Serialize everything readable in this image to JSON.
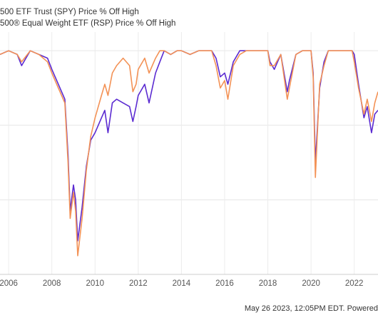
{
  "legend": [
    {
      "label": "500 ETF Trust (SPY) Price % Off High",
      "color": "#5b2bd1"
    },
    {
      "label": "500® Equal Weight ETF (RSP) Price % Off High",
      "color": "#f39256"
    }
  ],
  "footer": {
    "text": "May 26 2023, 12:05PM EDT. Powered"
  },
  "chart_data": {
    "type": "line",
    "title": "",
    "xlabel": "",
    "ylabel": "",
    "x_ticks": [
      "2006",
      "2008",
      "2010",
      "2012",
      "2014",
      "2016",
      "2018",
      "2020",
      "2022"
    ],
    "xlim": [
      2005.6,
      2023.1
    ],
    "ylim": [
      -60,
      5
    ],
    "grid": true,
    "legend_position": "top-left",
    "series": [
      {
        "name": "500 ETF Trust (SPY) Price % Off High",
        "color": "#5b2bd1",
        "x": [
          2005.6,
          2006.0,
          2006.4,
          2006.6,
          2007.0,
          2007.4,
          2007.8,
          2008.0,
          2008.3,
          2008.6,
          2008.75,
          2008.85,
          2009.0,
          2009.1,
          2009.2,
          2009.4,
          2009.6,
          2009.8,
          2010.0,
          2010.3,
          2010.45,
          2010.6,
          2010.8,
          2011.0,
          2011.3,
          2011.6,
          2011.75,
          2011.9,
          2012.0,
          2012.3,
          2012.5,
          2012.8,
          2013.0,
          2013.2,
          2013.5,
          2013.8,
          2014.0,
          2014.4,
          2014.8,
          2015.0,
          2015.4,
          2015.6,
          2015.8,
          2016.0,
          2016.15,
          2016.4,
          2016.7,
          2017.0,
          2017.5,
          2018.0,
          2018.1,
          2018.3,
          2018.6,
          2018.9,
          2019.0,
          2019.3,
          2019.6,
          2020.0,
          2020.1,
          2020.2,
          2020.4,
          2020.6,
          2020.8,
          2021.0,
          2021.5,
          2021.9,
          2022.0,
          2022.2,
          2022.45,
          2022.6,
          2022.8,
          2022.95,
          2023.1
        ],
        "y": [
          -1,
          0,
          -1,
          -4,
          0,
          -1,
          -2,
          -5,
          -9,
          -13,
          -28,
          -43,
          -36,
          -40,
          -51,
          -42,
          -31,
          -24,
          -22,
          -18,
          -16,
          -22,
          -14,
          -13,
          -14,
          -15,
          -19,
          -15,
          -12,
          -9,
          -14,
          -6,
          -3,
          0,
          -1,
          0,
          0,
          -1,
          0,
          0,
          0,
          -2,
          -7,
          -6,
          -9,
          -3,
          0,
          0,
          0,
          0,
          -3,
          -5,
          -1,
          -11,
          -8,
          -1,
          0,
          0,
          -6,
          -30,
          -10,
          -3,
          0,
          0,
          0,
          0,
          -1,
          -9,
          -18,
          -15,
          -22,
          -17,
          -16
        ]
      },
      {
        "name": "500® Equal Weight ETF (RSP) Price % Off High",
        "color": "#f39256",
        "x": [
          2005.6,
          2006.0,
          2006.4,
          2006.6,
          2007.0,
          2007.4,
          2007.8,
          2008.0,
          2008.3,
          2008.6,
          2008.75,
          2008.85,
          2009.0,
          2009.1,
          2009.2,
          2009.4,
          2009.6,
          2009.8,
          2010.0,
          2010.3,
          2010.45,
          2010.6,
          2010.8,
          2011.0,
          2011.3,
          2011.6,
          2011.75,
          2011.9,
          2012.0,
          2012.3,
          2012.5,
          2012.8,
          2013.0,
          2013.2,
          2013.5,
          2013.8,
          2014.0,
          2014.4,
          2014.8,
          2015.0,
          2015.4,
          2015.6,
          2015.8,
          2016.0,
          2016.15,
          2016.4,
          2016.7,
          2017.0,
          2017.5,
          2018.0,
          2018.1,
          2018.3,
          2018.6,
          2018.9,
          2019.0,
          2019.3,
          2019.6,
          2020.0,
          2020.1,
          2020.2,
          2020.4,
          2020.6,
          2020.8,
          2021.0,
          2021.5,
          2021.9,
          2022.0,
          2022.2,
          2022.45,
          2022.6,
          2022.8,
          2022.95,
          2023.1
        ],
        "y": [
          -1,
          0,
          -1,
          -3,
          0,
          -1,
          -3,
          -6,
          -10,
          -14,
          -30,
          -45,
          -38,
          -43,
          -55,
          -45,
          -32,
          -23,
          -18,
          -12,
          -9,
          -12,
          -6,
          -4,
          -2,
          -4,
          -11,
          -9,
          -5,
          -2,
          -6,
          -2,
          0,
          0,
          -1,
          0,
          0,
          -1,
          0,
          0,
          0,
          -4,
          -10,
          -8,
          -13,
          -4,
          -1,
          0,
          0,
          0,
          -4,
          -4,
          -1,
          -13,
          -10,
          -1,
          0,
          0,
          -7,
          -34,
          -9,
          -4,
          0,
          0,
          0,
          0,
          -3,
          -10,
          -17,
          -13,
          -19,
          -14,
          -11
        ]
      }
    ]
  }
}
